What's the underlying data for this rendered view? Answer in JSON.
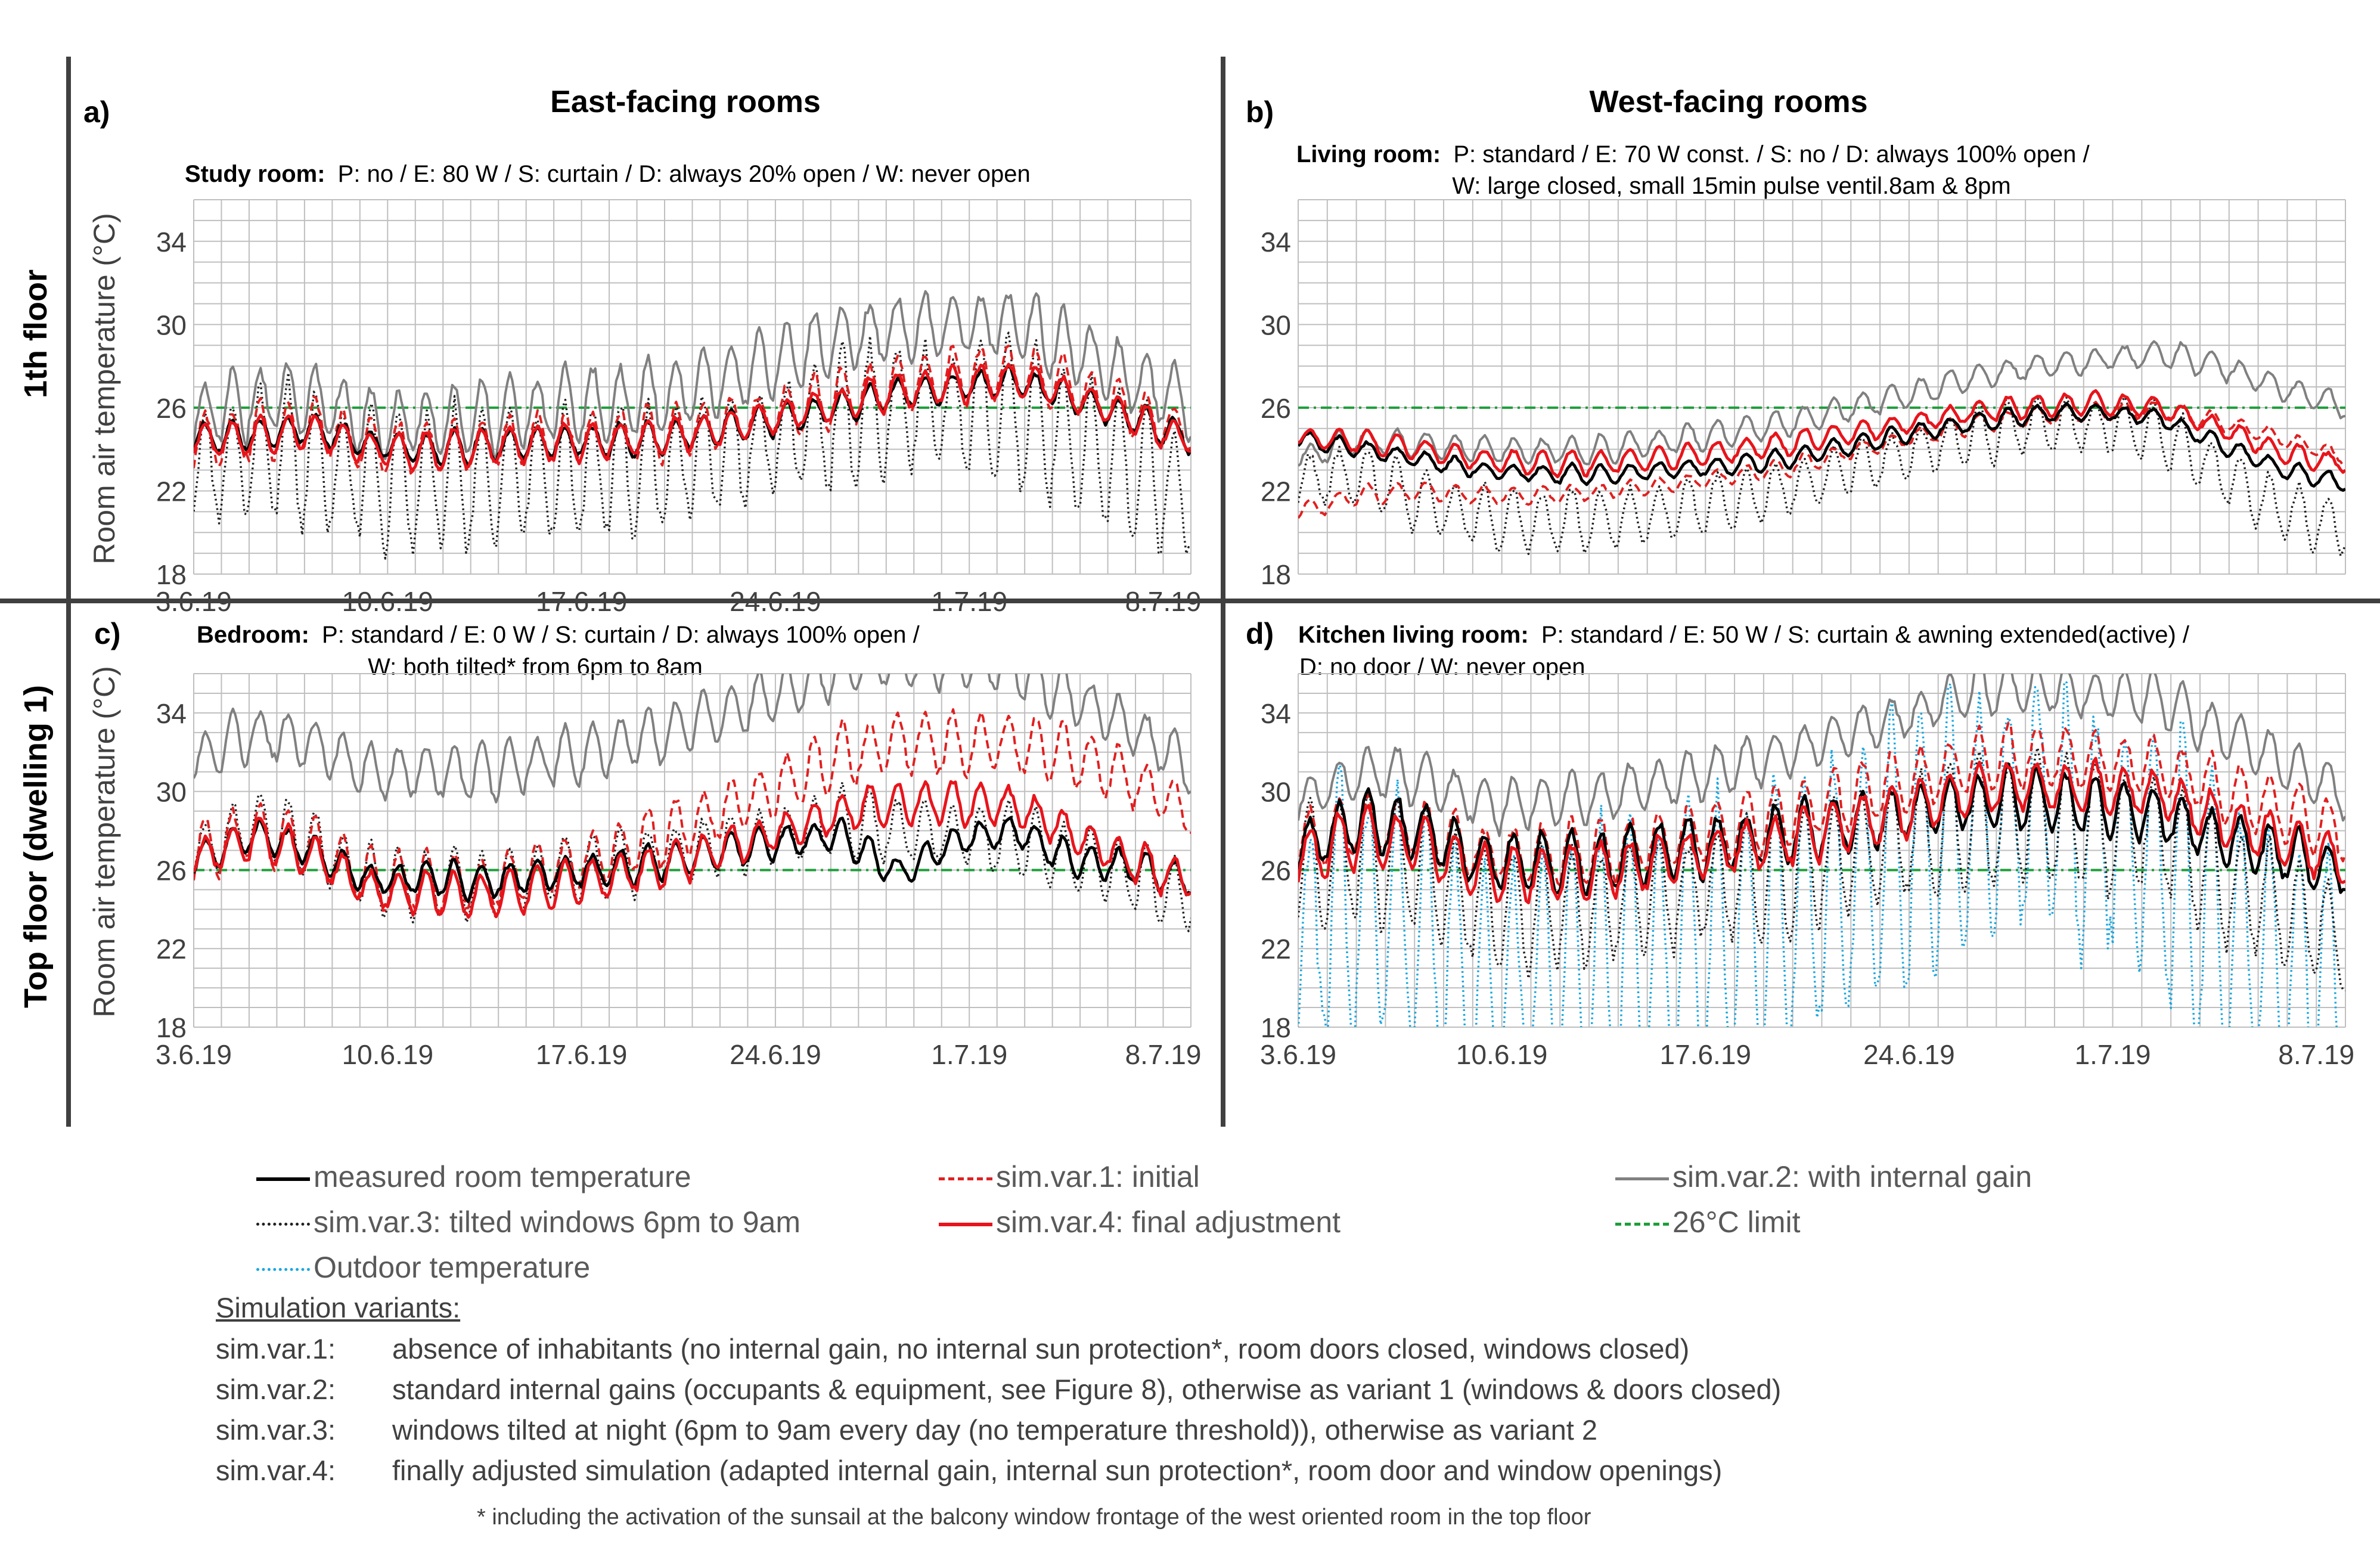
{
  "chart_data": [
    {
      "type": "line",
      "panel_label": "a)",
      "column_title": "East-facing rooms",
      "room": "Study room:",
      "details_line1": "P: no / E: 80 W / S: curtain / D: always 20% open / W: never open",
      "details_line2": "",
      "ylabel": "Room air temperature (°C)",
      "ylim": [
        18,
        36
      ],
      "yticks": [
        "18",
        "22",
        "26",
        "30",
        "34"
      ],
      "xticks": [
        "3.6.19",
        "10.6.19",
        "17.6.19",
        "24.6.19",
        "1.7.19",
        "8.7.19"
      ],
      "xlim_days": [
        0,
        36
      ],
      "limit": 26,
      "series": [
        {
          "name": "measured room temperature",
          "base": [
            24.5,
            24.7,
            25,
            24.2,
            24,
            24.2,
            24.3,
            24.4,
            24.6,
            25,
            25.5,
            26,
            26.7,
            27,
            27.3,
            26.5,
            25.5,
            24.5
          ],
          "amp": 0.7
        },
        {
          "name": "sim.var.1: initial",
          "base": [
            24.3,
            24.8,
            25.2,
            24.2,
            24,
            24.3,
            24.5,
            24.6,
            24.8,
            25.2,
            25.8,
            26.5,
            27.2,
            27.5,
            27.8,
            27,
            25.8,
            24.8
          ],
          "amp": 1.2
        },
        {
          "name": "sim.var.2: with internal gain",
          "base": [
            25.5,
            26.3,
            26.5,
            25.3,
            25.3,
            25.6,
            26,
            26.2,
            26.6,
            27.4,
            28.3,
            29.3,
            29.8,
            30,
            30,
            28.8,
            27.4,
            26.2
          ],
          "amp": 1.6
        },
        {
          "name": "sim.var.3: tilted windows 6pm to 9am",
          "base": [
            23,
            23.8,
            23.8,
            22.5,
            22.5,
            22.6,
            22.8,
            23,
            23.2,
            23.8,
            24.6,
            25.5,
            26,
            26,
            25.8,
            24.4,
            23,
            21.8
          ],
          "amp": 3
        },
        {
          "name": "sim.var.4: final adjustment",
          "base": [
            24.4,
            24.6,
            24.9,
            24,
            23.9,
            24.2,
            24.3,
            24.4,
            24.6,
            25,
            25.6,
            26.2,
            26.8,
            27.1,
            27.4,
            26.6,
            25.5,
            24.4
          ],
          "amp": 0.8
        }
      ]
    },
    {
      "type": "line",
      "panel_label": "b)",
      "column_title": "West-facing rooms",
      "room": "Living room:",
      "details_line1": "P: standard / E: 70 W const. / S: no / D: always 100% open /",
      "details_line2": "W: large closed, small 15min pulse ventil.8am & 8pm",
      "ylabel": "",
      "ylim": [
        18,
        36
      ],
      "yticks": [
        "18",
        "22",
        "26",
        "30",
        "34"
      ],
      "xticks": [],
      "xlim_days": [
        0,
        36
      ],
      "limit": 26,
      "series": [
        {
          "name": "measured room temperature",
          "base": [
            24.5,
            24,
            23.5,
            23,
            22.8,
            22.8,
            23,
            23.2,
            23.6,
            24.2,
            24.8,
            25.3,
            25.7,
            25.8,
            25.5,
            24.2,
            23,
            22.4
          ],
          "amp": 0.4
        },
        {
          "name": "sim.var.1: initial",
          "base": [
            21,
            21.8,
            22,
            21.8,
            21.8,
            22,
            22.3,
            22.7,
            23.2,
            23.9,
            24.6,
            25.2,
            25.6,
            25.8,
            25.9,
            25.3,
            24.5,
            23.6
          ],
          "amp": 0.4
        },
        {
          "name": "sim.var.2: with internal gain",
          "base": [
            23.5,
            24.5,
            24.2,
            24,
            23.9,
            24,
            24.4,
            24.8,
            25.3,
            26,
            26.7,
            27.5,
            28,
            28.3,
            28.6,
            28,
            26.9,
            26.1
          ],
          "amp": 0.6
        },
        {
          "name": "sim.var.3: tilted windows 6pm to 9am",
          "base": [
            22.5,
            22.8,
            21.5,
            20.7,
            20.5,
            20.6,
            21,
            21.5,
            22.2,
            23.1,
            23.9,
            24.7,
            25.2,
            25.2,
            24.8,
            22.8,
            21,
            20.2
          ],
          "amp": 1.3
        },
        {
          "name": "sim.var.4: final adjustment",
          "base": [
            24.6,
            24.4,
            24,
            23.5,
            23.3,
            23.4,
            23.6,
            23.9,
            24.3,
            24.8,
            25.3,
            25.8,
            26.1,
            26.2,
            26,
            25,
            23.8,
            23.3
          ],
          "amp": 0.5
        }
      ]
    },
    {
      "type": "line",
      "panel_label": "c)",
      "column_title": "",
      "room": "Bedroom:",
      "details_line1": "P: standard / E: 0 W / S: curtain / D: always 100% open /",
      "details_line2": "W: both tilted* from 6pm to 8am",
      "ylabel": "Room air temperature (°C)",
      "ylim": [
        18,
        36
      ],
      "yticks": [
        "18",
        "22",
        "26",
        "30",
        "34"
      ],
      "xticks": [
        "3.6.19",
        "10.6.19",
        "17.6.19",
        "24.6.19",
        "1.7.19",
        "8.7.19"
      ],
      "xlim_days": [
        0,
        36
      ],
      "limit": 26,
      "series": [
        {
          "name": "measured room temperature",
          "base": [
            26.5,
            27.8,
            27,
            25.5,
            25.6,
            25.4,
            25.8,
            26,
            26.4,
            27,
            27.4,
            27.8,
            25.8,
            27.5,
            28,
            26.5,
            26.2,
            25.5
          ],
          "amp": 0.8
        },
        {
          "name": "sim.var.1: initial",
          "base": [
            26.8,
            28,
            27.3,
            25.6,
            25.4,
            25.4,
            26,
            26.8,
            27.8,
            29,
            30.3,
            31.8,
            32.5,
            32.4,
            32.5,
            31.8,
            30.6,
            28.8
          ],
          "amp": 1.4
        },
        {
          "name": "sim.var.2: with internal gain",
          "base": [
            31.5,
            33,
            32.5,
            31,
            31,
            31,
            31.6,
            32.2,
            33,
            34,
            35,
            36.2,
            36.6,
            36.5,
            36.3,
            34.8,
            33.2,
            31.2
          ],
          "amp": 1.3
        },
        {
          "name": "sim.var.3: tilted windows 6pm to 9am",
          "base": [
            26.8,
            28.3,
            27.4,
            25.4,
            25.3,
            25.3,
            25.8,
            26.2,
            26.6,
            27.2,
            27.8,
            28.4,
            28.1,
            27.8,
            27.5,
            26.6,
            25.7,
            24.6
          ],
          "amp": 1.6
        },
        {
          "name": "sim.var.4: final adjustment",
          "base": [
            26.5,
            27.7,
            26.8,
            25,
            24.8,
            24.7,
            25.1,
            25.6,
            26.2,
            27.1,
            28,
            28.9,
            29.4,
            29.4,
            29.3,
            27.8,
            26.4,
            25.5
          ],
          "amp": 1
        }
      ]
    },
    {
      "type": "line",
      "panel_label": "d)",
      "column_title": "",
      "room": "Kitchen living room:",
      "details_line1": "P: standard / E: 50 W / S: curtain  & awning extended(active) /",
      "details_line2": "D: no door / W: never open",
      "ylabel": "",
      "ylim": [
        18,
        36
      ],
      "yticks": [
        "18",
        "22",
        "26",
        "30",
        "34"
      ],
      "xticks": [
        "3.6.19",
        "10.6.19",
        "17.6.19",
        "24.6.19",
        "1.7.19",
        "8.7.19"
      ],
      "xlim_days": [
        0,
        36
      ],
      "limit": 26,
      "series": [
        {
          "name": "measured room temperature",
          "base": [
            27,
            28.5,
            28,
            26.5,
            26.3,
            26.5,
            27,
            27.4,
            27.9,
            28.4,
            29,
            29.6,
            29.7,
            29.2,
            28.8,
            27.6,
            26.8,
            26
          ],
          "amp": 1.4
        },
        {
          "name": "sim.var.1: initial",
          "base": [
            27.3,
            28.4,
            28.1,
            26.8,
            26.8,
            27,
            27.6,
            28.2,
            28.9,
            29.8,
            30.6,
            31.6,
            31.8,
            31.6,
            31.4,
            30,
            29,
            27.8
          ],
          "amp": 1.5
        },
        {
          "name": "sim.var.2: with internal gain",
          "base": [
            29.5,
            31,
            30.7,
            29.3,
            29.5,
            29.8,
            30.5,
            31.2,
            32,
            33,
            34,
            35.2,
            35.3,
            35,
            34.7,
            32.9,
            31.5,
            29.8
          ],
          "amp": 1.2
        },
        {
          "name": "sim.var.3: tilted windows 6pm to 9am",
          "base": [
            26,
            26.8,
            26.1,
            24,
            24,
            24.2,
            24.8,
            25.3,
            26,
            26.8,
            27.6,
            28.5,
            28.5,
            28.2,
            27.9,
            25.5,
            24,
            22.6
          ],
          "amp": 3
        },
        {
          "name": "sim.var.4: final adjustment",
          "base": [
            26.6,
            27.7,
            27.3,
            25.8,
            25.8,
            26,
            26.5,
            27,
            27.6,
            28.4,
            29.2,
            30.1,
            30.3,
            30.1,
            29.9,
            28.5,
            27.5,
            26.4
          ],
          "amp": 1.3
        },
        {
          "name": "Outdoor temperature",
          "base": [
            22,
            24.5,
            23,
            19.5,
            20.5,
            21,
            21.5,
            22.5,
            24,
            25.5,
            27,
            28.5,
            29.5,
            28,
            26.5,
            23,
            21,
            20
          ],
          "amp": 6.5
        }
      ]
    }
  ],
  "row_labels": [
    "1th floor",
    "Top floor (dwelling 1)"
  ],
  "legend": [
    {
      "label": "measured room temperature",
      "color": "#000000",
      "dash": "solid"
    },
    {
      "label": "sim.var.1: initial",
      "color": "#e02020",
      "dash": "dashed"
    },
    {
      "label": "sim.var.2: with internal gain",
      "color": "#808080",
      "dash": "solid"
    },
    {
      "label": "sim.var.3: tilted windows 6pm to 9am",
      "color": "#202020",
      "dash": "dotted"
    },
    {
      "label": "sim.var.4: final adjustment",
      "color": "#e8141b",
      "dash": "solid"
    },
    {
      "label": "26°C limit",
      "color": "#1e9e3a",
      "dash": "dashdot"
    },
    {
      "label": "Outdoor temperature",
      "color": "#1aa7e0",
      "dash": "dotted"
    }
  ],
  "notes": {
    "heading": "Simulation variants:",
    "rows": [
      {
        "key": "sim.var.1:",
        "text": "absence of inhabitants (no internal gain, no internal sun protection*, room doors closed, windows closed)"
      },
      {
        "key": "sim.var.2:",
        "text": "standard internal gains (occupants & equipment, see Figure 8), otherwise as variant 1 (windows & doors closed)"
      },
      {
        "key": "sim.var.3:",
        "text": "windows tilted at night (6pm to 9am every day (no temperature threshold)), otherwise as variant 2"
      },
      {
        "key": "sim.var.4:",
        "text": "finally adjusted simulation (adapted internal gain, internal sun protection*, room door and window openings)"
      }
    ],
    "footnote": "* including the activation of the sunsail at the balcony window frontage of the west oriented room in the top floor"
  }
}
